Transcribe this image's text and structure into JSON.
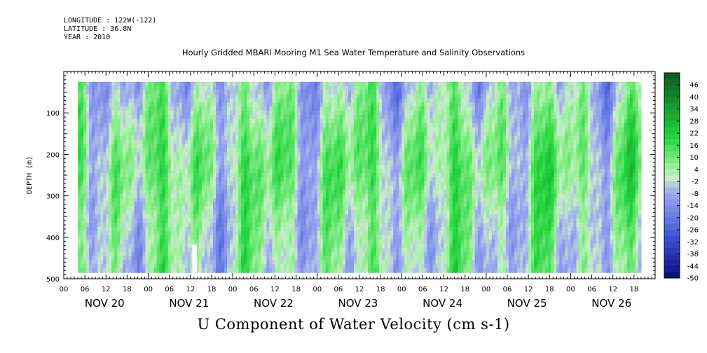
{
  "meta": {
    "longitude": "LONGITUDE : 122W(-122)",
    "latitude": "LATITUDE : 36.8N",
    "year": "YEAR : 2010"
  },
  "chart_data": {
    "type": "heatmap",
    "title": "Hourly Gridded MBARI Mooring M1 Sea Water Temperature and Salinity Observations",
    "xlabel": "",
    "ylabel": "DEPTH (m)",
    "colorbar_title": "U Component of Water Velocity (cm s-1)",
    "ylim": [
      500,
      20
    ],
    "y_ticks": [
      "100",
      "200",
      "300",
      "400",
      "500"
    ],
    "y_tick_values": [
      100,
      200,
      300,
      400,
      500
    ],
    "x_hour_ticks": [
      "00",
      "06",
      "12",
      "18",
      "00",
      "06",
      "12",
      "18",
      "00",
      "06",
      "12",
      "18",
      "00",
      "06",
      "12",
      "18",
      "00",
      "06",
      "12",
      "18",
      "00",
      "06",
      "12",
      "18",
      "00",
      "06",
      "12",
      "18"
    ],
    "days": [
      "NOV 20",
      "NOV 21",
      "NOV 22",
      "NOV 23",
      "NOV 24",
      "NOV 25",
      "NOV 26"
    ],
    "x_start_hour": 0,
    "x_end_hour": 168,
    "data_start_hour": 4,
    "data_end_hour": 164,
    "data_depth_range": [
      25,
      485
    ],
    "colorbar_levels": [
      46,
      40,
      34,
      28,
      22,
      16,
      10,
      4,
      -2,
      -8,
      -14,
      -20,
      -26,
      -32,
      -38,
      -44,
      -50
    ],
    "colorbar_range": [
      -50,
      52
    ],
    "colors": {
      "neg_strong": "#0a0a7a",
      "neg_mid": "#3a52d8",
      "neg_weak": "#9aa8ef",
      "neutral": "#c8eec8",
      "pos_weak": "#8fef8f",
      "pos_mid": "#22d43c",
      "pos_strong": "#0a5a20"
    },
    "data_gap": {
      "hour": 36.5,
      "depth_range": [
        418,
        485
      ]
    }
  }
}
